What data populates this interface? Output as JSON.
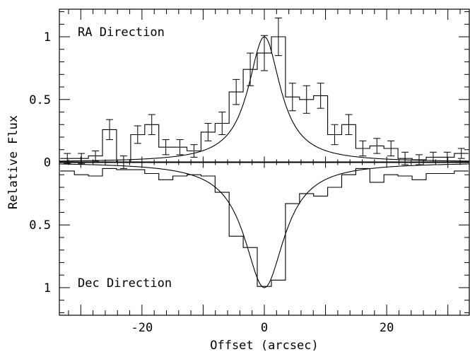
{
  "chart_data": {
    "type": "line",
    "xlabel": "Offset (arcsec)",
    "ylabel": "Relative Flux",
    "xlim": [
      -33.5,
      33.5
    ],
    "x_ticks": [
      "-20",
      "0",
      "20"
    ],
    "x_tick_values": [
      -20,
      0,
      20
    ],
    "y_tick_labels": [
      {
        "label": "1",
        "value": 1
      },
      {
        "label": "0.5",
        "value": 0.5
      },
      {
        "label": "0",
        "value": 0
      },
      {
        "label": "0.5",
        "value": -0.5
      },
      {
        "label": "1",
        "value": -1
      }
    ],
    "ylim": [
      -1.22,
      1.22
    ],
    "zero_line": true,
    "bin_width": 2.3,
    "series": [
      {
        "name": "RA Direction",
        "panel": "top",
        "style": "histogram-with-errorbars",
        "x": [
          -32.2,
          -29.9,
          -27.6,
          -25.3,
          -23.0,
          -20.7,
          -18.4,
          -16.1,
          -13.8,
          -11.5,
          -9.2,
          -6.9,
          -4.6,
          -2.3,
          0.0,
          2.3,
          4.6,
          6.9,
          9.2,
          11.5,
          13.8,
          16.1,
          18.4,
          20.7,
          23.0,
          25.3,
          27.6,
          29.9,
          32.2
        ],
        "values": [
          0.03,
          0.03,
          0.05,
          0.26,
          0.0,
          0.22,
          0.3,
          0.12,
          0.12,
          0.09,
          0.24,
          0.31,
          0.56,
          0.74,
          0.87,
          1.0,
          0.52,
          0.5,
          0.53,
          0.22,
          0.3,
          0.11,
          0.13,
          0.11,
          0.03,
          0.02,
          0.04,
          0.04,
          0.07
        ],
        "errors": [
          0.04,
          0.04,
          0.04,
          0.08,
          0.05,
          0.07,
          0.08,
          0.06,
          0.06,
          0.05,
          0.07,
          0.09,
          0.1,
          0.13,
          0.14,
          0.15,
          0.11,
          0.11,
          0.1,
          0.08,
          0.08,
          0.06,
          0.06,
          0.06,
          0.05,
          0.04,
          0.04,
          0.04,
          0.04
        ]
      },
      {
        "name": "",
        "panel": "top",
        "style": "model-curve",
        "model": "lorentzian",
        "center": 0,
        "hwhm": 3.2,
        "amplitude": 1
      },
      {
        "name": "Dec Direction",
        "panel": "bottom",
        "style": "histogram-with-errorbars",
        "x": [
          -32.2,
          -29.9,
          -27.6,
          -25.3,
          -23.0,
          -20.7,
          -18.4,
          -16.1,
          -13.8,
          -11.5,
          -9.2,
          -6.9,
          -4.6,
          -2.3,
          0.0,
          2.3,
          4.6,
          6.9,
          9.2,
          11.5,
          13.8,
          16.1,
          18.4,
          20.7,
          23.0,
          25.3,
          27.6,
          29.9,
          32.2
        ],
        "values": [
          -0.07,
          -0.1,
          -0.11,
          -0.05,
          -0.06,
          -0.06,
          -0.09,
          -0.14,
          -0.11,
          -0.1,
          -0.11,
          -0.24,
          -0.59,
          -0.68,
          -0.99,
          -0.94,
          -0.33,
          -0.25,
          -0.27,
          -0.2,
          -0.1,
          -0.05,
          -0.16,
          -0.1,
          -0.11,
          -0.14,
          -0.09,
          -0.09,
          -0.07
        ]
      },
      {
        "name": "",
        "panel": "bottom",
        "style": "model-curve",
        "model": "lorentzian",
        "center": 0,
        "hwhm": 4.0,
        "amplitude": -1
      }
    ]
  }
}
